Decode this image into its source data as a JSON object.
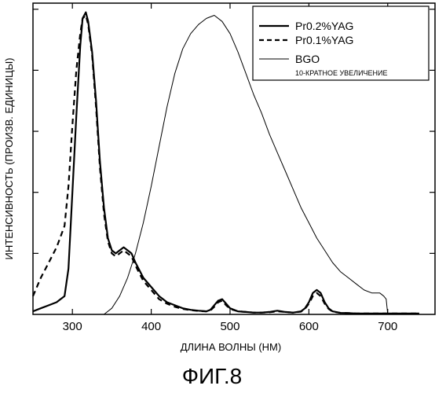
{
  "chart_data": {
    "type": "line",
    "caption": "ФИГ.8",
    "xlabel": "ДЛИНА ВОЛНЫ (НМ)",
    "ylabel": "ИНТЕНСИВНОСТЬ (ПРОИЗВ. ЕДИНИЦЫ)",
    "xlim": [
      250,
      760
    ],
    "ylim": [
      0,
      1.02
    ],
    "xticks": [
      300,
      400,
      500,
      600,
      700
    ],
    "yticks": [
      0.2,
      0.4,
      0.6,
      0.8,
      1.0
    ],
    "y_tick_labels_shown": false,
    "grid": false,
    "legend_position": "top-right",
    "legend_note": "10-КРАТНОЕ УВЕЛИЧЕНИЕ",
    "series": [
      {
        "name": "Pr0.2%YAG",
        "style": "solid-thick",
        "x": [
          250,
          260,
          270,
          280,
          290,
          295,
          300,
          305,
          310,
          313,
          317,
          320,
          325,
          330,
          335,
          340,
          345,
          350,
          355,
          360,
          365,
          370,
          375,
          380,
          390,
          400,
          410,
          420,
          430,
          440,
          450,
          460,
          470,
          475,
          480,
          485,
          490,
          495,
          500,
          510,
          520,
          530,
          540,
          550,
          555,
          560,
          565,
          570,
          580,
          590,
          595,
          600,
          605,
          610,
          615,
          620,
          625,
          630,
          640,
          650,
          660,
          670,
          680,
          690,
          700,
          710,
          720,
          730,
          740
        ],
        "y": [
          0.01,
          0.02,
          0.03,
          0.04,
          0.06,
          0.15,
          0.4,
          0.65,
          0.88,
          0.97,
          0.99,
          0.96,
          0.86,
          0.7,
          0.5,
          0.35,
          0.25,
          0.21,
          0.2,
          0.21,
          0.22,
          0.21,
          0.2,
          0.17,
          0.12,
          0.09,
          0.06,
          0.04,
          0.03,
          0.02,
          0.015,
          0.012,
          0.01,
          0.015,
          0.03,
          0.045,
          0.05,
          0.035,
          0.02,
          0.01,
          0.008,
          0.006,
          0.006,
          0.008,
          0.01,
          0.012,
          0.01,
          0.008,
          0.006,
          0.01,
          0.02,
          0.04,
          0.07,
          0.08,
          0.07,
          0.04,
          0.02,
          0.01,
          0.005,
          0.004,
          0.003,
          0.003,
          0.003,
          0.003,
          0.003,
          0.003,
          0.003,
          0.003,
          0.003
        ]
      },
      {
        "name": "Pr0.1%YAG",
        "style": "dashed",
        "x": [
          250,
          260,
          270,
          280,
          290,
          295,
          300,
          305,
          310,
          313,
          317,
          320,
          325,
          330,
          335,
          340,
          345,
          350,
          355,
          360,
          365,
          370,
          375,
          380,
          390,
          400,
          410,
          420,
          430,
          440,
          450,
          460,
          470,
          475,
          480,
          485,
          490,
          495,
          500,
          510,
          520,
          530,
          540,
          550,
          560,
          570,
          580,
          590,
          595,
          600,
          605,
          610,
          615,
          620,
          625,
          630,
          640,
          650,
          660,
          670,
          680,
          690,
          700,
          710,
          720,
          730,
          740
        ],
        "y": [
          0.06,
          0.12,
          0.17,
          0.22,
          0.29,
          0.42,
          0.62,
          0.8,
          0.92,
          0.97,
          0.98,
          0.95,
          0.85,
          0.68,
          0.48,
          0.33,
          0.24,
          0.2,
          0.19,
          0.2,
          0.21,
          0.2,
          0.19,
          0.16,
          0.11,
          0.08,
          0.05,
          0.035,
          0.025,
          0.018,
          0.014,
          0.011,
          0.01,
          0.013,
          0.025,
          0.04,
          0.045,
          0.03,
          0.018,
          0.01,
          0.008,
          0.006,
          0.006,
          0.007,
          0.01,
          0.008,
          0.006,
          0.009,
          0.018,
          0.035,
          0.06,
          0.07,
          0.06,
          0.035,
          0.018,
          0.009,
          0.005,
          0.004,
          0.003,
          0.003,
          0.003,
          0.003,
          0.003,
          0.003,
          0.003,
          0.003,
          0.003
        ]
      },
      {
        "name": "BGO",
        "style": "solid-thin",
        "x": [
          340,
          350,
          360,
          370,
          380,
          390,
          400,
          410,
          420,
          430,
          440,
          450,
          460,
          470,
          480,
          490,
          500,
          510,
          520,
          530,
          540,
          550,
          560,
          570,
          580,
          590,
          600,
          610,
          620,
          630,
          640,
          650,
          660,
          670,
          680,
          690,
          695,
          698,
          700
        ],
        "y": [
          0.0,
          0.02,
          0.06,
          0.12,
          0.2,
          0.3,
          0.42,
          0.55,
          0.68,
          0.79,
          0.87,
          0.92,
          0.95,
          0.97,
          0.98,
          0.96,
          0.92,
          0.86,
          0.79,
          0.72,
          0.66,
          0.59,
          0.53,
          0.47,
          0.41,
          0.35,
          0.3,
          0.25,
          0.21,
          0.17,
          0.14,
          0.12,
          0.1,
          0.08,
          0.07,
          0.07,
          0.06,
          0.05,
          0.0
        ]
      }
    ]
  }
}
